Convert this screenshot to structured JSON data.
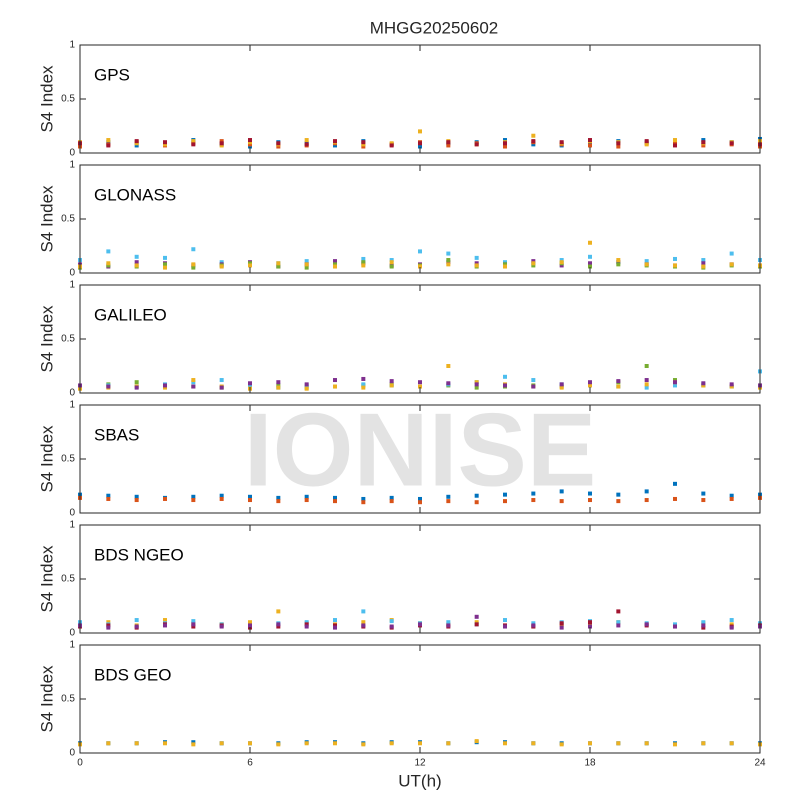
{
  "title": "MHGG20250602",
  "watermark": "IONISE",
  "chart_data": [
    {
      "type": "scatter",
      "label": "GPS",
      "y_label": "S4 Index",
      "xlim": [
        0,
        24
      ],
      "ylim": [
        0,
        1
      ],
      "yticks": [
        0,
        0.5,
        1
      ],
      "x": [
        0,
        1,
        2,
        3,
        4,
        5,
        6,
        7,
        8,
        9,
        10,
        11,
        12,
        13,
        14,
        15,
        16,
        17,
        18,
        19,
        20,
        21,
        22,
        23,
        24
      ],
      "series": [
        {
          "color": "#0072BD",
          "values": [
            0.08,
            0.1,
            0.07,
            0.09,
            0.12,
            0.08,
            0.06,
            0.1,
            0.09,
            0.07,
            0.11,
            0.08,
            0.06,
            0.09,
            0.1,
            0.12,
            0.08,
            0.07,
            0.09,
            0.11,
            0.1,
            0.08,
            0.12,
            0.1,
            0.13
          ]
        },
        {
          "color": "#D95319",
          "values": [
            0.06,
            0.08,
            0.1,
            0.07,
            0.09,
            0.11,
            0.08,
            0.06,
            0.07,
            0.09,
            0.06,
            0.08,
            0.1,
            0.07,
            0.09,
            0.06,
            0.1,
            0.08,
            0.07,
            0.06,
            0.09,
            0.1,
            0.07,
            0.08,
            0.06
          ]
        },
        {
          "color": "#EDB120",
          "values": [
            0.1,
            0.12,
            0.09,
            0.08,
            0.11,
            0.07,
            0.1,
            0.08,
            0.12,
            0.1,
            0.08,
            0.09,
            0.2,
            0.11,
            0.08,
            0.1,
            0.16,
            0.09,
            0.11,
            0.1,
            0.08,
            0.12,
            0.09,
            0.1,
            0.11
          ]
        },
        {
          "color": "#A2142F",
          "values": [
            0.09,
            0.07,
            0.11,
            0.1,
            0.08,
            0.09,
            0.12,
            0.09,
            0.08,
            0.11,
            0.1,
            0.07,
            0.09,
            0.1,
            0.08,
            0.09,
            0.11,
            0.1,
            0.12,
            0.09,
            0.11,
            0.07,
            0.1,
            0.09,
            0.08
          ]
        }
      ]
    },
    {
      "type": "scatter",
      "label": "GLONASS",
      "y_label": "S4 Index",
      "xlim": [
        0,
        24
      ],
      "ylim": [
        0,
        1
      ],
      "yticks": [
        0,
        0.5,
        1
      ],
      "x": [
        0,
        1,
        2,
        3,
        4,
        5,
        6,
        7,
        8,
        9,
        10,
        11,
        12,
        13,
        14,
        15,
        16,
        17,
        18,
        19,
        20,
        21,
        22,
        23,
        24
      ],
      "series": [
        {
          "color": "#4DBEEE",
          "values": [
            0.12,
            0.2,
            0.15,
            0.14,
            0.22,
            0.1,
            0.08,
            0.09,
            0.11,
            0.1,
            0.13,
            0.12,
            0.2,
            0.18,
            0.14,
            0.1,
            0.09,
            0.12,
            0.15,
            0.1,
            0.11,
            0.13,
            0.12,
            0.18,
            0.12
          ]
        },
        {
          "color": "#7E2F8E",
          "values": [
            0.08,
            0.06,
            0.1,
            0.09,
            0.07,
            0.08,
            0.1,
            0.06,
            0.08,
            0.11,
            0.09,
            0.07,
            0.08,
            0.1,
            0.09,
            0.08,
            0.11,
            0.07,
            0.09,
            0.1,
            0.08,
            0.07,
            0.09,
            0.08,
            0.07
          ]
        },
        {
          "color": "#77AC30",
          "values": [
            0.05,
            0.07,
            0.06,
            0.08,
            0.05,
            0.07,
            0.09,
            0.06,
            0.05,
            0.08,
            0.1,
            0.06,
            0.07,
            0.12,
            0.06,
            0.08,
            0.07,
            0.09,
            0.06,
            0.08,
            0.07,
            0.06,
            0.05,
            0.07,
            0.06
          ]
        },
        {
          "color": "#EDB120",
          "values": [
            0.06,
            0.09,
            0.07,
            0.05,
            0.08,
            0.06,
            0.07,
            0.09,
            0.08,
            0.06,
            0.07,
            0.1,
            0.06,
            0.08,
            0.07,
            0.06,
            0.09,
            0.1,
            0.28,
            0.12,
            0.08,
            0.07,
            0.06,
            0.08,
            0.07
          ]
        }
      ]
    },
    {
      "type": "scatter",
      "label": "GALILEO",
      "y_label": "S4 Index",
      "xlim": [
        0,
        24
      ],
      "ylim": [
        0,
        1
      ],
      "yticks": [
        0,
        0.5,
        1
      ],
      "x": [
        0,
        1,
        2,
        3,
        4,
        5,
        6,
        7,
        8,
        9,
        10,
        11,
        12,
        13,
        14,
        15,
        16,
        17,
        18,
        19,
        20,
        21,
        22,
        23,
        24
      ],
      "series": [
        {
          "color": "#77AC30",
          "values": [
            0.06,
            0.08,
            0.1,
            0.07,
            0.06,
            0.05,
            0.06,
            0.07,
            0.05,
            0.06,
            0.07,
            0.08,
            0.06,
            0.07,
            0.05,
            0.06,
            0.07,
            0.06,
            0.08,
            0.1,
            0.25,
            0.12,
            0.07,
            0.06,
            0.07
          ]
        },
        {
          "color": "#4DBEEE",
          "values": [
            0.05,
            0.07,
            0.06,
            0.08,
            0.1,
            0.12,
            0.06,
            0.05,
            0.07,
            0.06,
            0.08,
            0.07,
            0.06,
            0.08,
            0.1,
            0.15,
            0.12,
            0.08,
            0.07,
            0.06,
            0.05,
            0.07,
            0.08,
            0.06,
            0.2
          ]
        },
        {
          "color": "#EDB120",
          "values": [
            0.04,
            0.05,
            0.06,
            0.05,
            0.12,
            0.06,
            0.04,
            0.05,
            0.04,
            0.06,
            0.05,
            0.07,
            0.06,
            0.25,
            0.1,
            0.08,
            0.06,
            0.05,
            0.07,
            0.06,
            0.08,
            0.1,
            0.07,
            0.06,
            0.05
          ]
        },
        {
          "color": "#7E2F8E",
          "values": [
            0.07,
            0.06,
            0.05,
            0.07,
            0.06,
            0.05,
            0.09,
            0.1,
            0.08,
            0.12,
            0.13,
            0.11,
            0.1,
            0.09,
            0.08,
            0.07,
            0.06,
            0.08,
            0.1,
            0.11,
            0.12,
            0.1,
            0.09,
            0.08,
            0.07
          ]
        }
      ]
    },
    {
      "type": "scatter",
      "label": "SBAS",
      "y_label": "S4 Index",
      "xlim": [
        0,
        24
      ],
      "ylim": [
        0,
        1
      ],
      "yticks": [
        0,
        0.5,
        1
      ],
      "x": [
        0,
        1,
        2,
        3,
        4,
        5,
        6,
        7,
        8,
        9,
        10,
        11,
        12,
        13,
        14,
        15,
        16,
        17,
        18,
        19,
        20,
        21,
        22,
        23,
        24
      ],
      "series": [
        {
          "color": "#0072BD",
          "values": [
            0.17,
            0.16,
            0.15,
            0.14,
            0.15,
            0.16,
            0.15,
            0.14,
            0.15,
            0.14,
            0.13,
            0.14,
            0.13,
            0.15,
            0.16,
            0.17,
            0.18,
            0.2,
            0.18,
            0.17,
            0.2,
            0.27,
            0.18,
            0.16,
            0.17
          ]
        },
        {
          "color": "#D95319",
          "values": [
            0.14,
            0.13,
            0.12,
            0.13,
            0.12,
            0.13,
            0.12,
            0.11,
            0.12,
            0.11,
            0.1,
            0.11,
            0.1,
            0.11,
            0.1,
            0.11,
            0.12,
            0.11,
            0.12,
            0.11,
            0.12,
            0.13,
            0.12,
            0.13,
            0.14
          ]
        }
      ]
    },
    {
      "type": "scatter",
      "label": "BDS NGEO",
      "y_label": "S4 Index",
      "xlim": [
        0,
        24
      ],
      "ylim": [
        0,
        1
      ],
      "yticks": [
        0,
        0.5,
        1
      ],
      "x": [
        0,
        1,
        2,
        3,
        4,
        5,
        6,
        7,
        8,
        9,
        10,
        11,
        12,
        13,
        14,
        15,
        16,
        17,
        18,
        19,
        20,
        21,
        22,
        23,
        24
      ],
      "series": [
        {
          "color": "#EDB120",
          "values": [
            0.08,
            0.1,
            0.07,
            0.12,
            0.09,
            0.08,
            0.1,
            0.2,
            0.09,
            0.08,
            0.1,
            0.12,
            0.09,
            0.08,
            0.1,
            0.07,
            0.06,
            0.08,
            0.09,
            0.1,
            0.08,
            0.07,
            0.09,
            0.08,
            0.07
          ]
        },
        {
          "color": "#4DBEEE",
          "values": [
            0.1,
            0.08,
            0.12,
            0.09,
            0.11,
            0.08,
            0.06,
            0.09,
            0.1,
            0.12,
            0.2,
            0.11,
            0.09,
            0.1,
            0.08,
            0.12,
            0.09,
            0.1,
            0.11,
            0.1,
            0.09,
            0.08,
            0.1,
            0.12,
            0.09
          ]
        },
        {
          "color": "#A2142F",
          "values": [
            0.06,
            0.07,
            0.05,
            0.08,
            0.06,
            0.07,
            0.05,
            0.06,
            0.08,
            0.07,
            0.06,
            0.05,
            0.07,
            0.06,
            0.08,
            0.07,
            0.06,
            0.09,
            0.1,
            0.2,
            0.07,
            0.06,
            0.05,
            0.06,
            0.07
          ]
        },
        {
          "color": "#7E2F8E",
          "values": [
            0.07,
            0.05,
            0.06,
            0.07,
            0.08,
            0.06,
            0.07,
            0.08,
            0.06,
            0.05,
            0.07,
            0.06,
            0.08,
            0.07,
            0.15,
            0.06,
            0.07,
            0.05,
            0.06,
            0.07,
            0.08,
            0.06,
            0.07,
            0.05,
            0.06
          ]
        }
      ]
    },
    {
      "type": "scatter",
      "label": "BDS GEO",
      "y_label": "S4 Index",
      "x_label": "UT(h)",
      "xlim": [
        0,
        24
      ],
      "ylim": [
        0,
        1
      ],
      "yticks": [
        0,
        0.5,
        1
      ],
      "xticks": [
        0,
        6,
        12,
        18,
        24
      ],
      "x": [
        0,
        1,
        2,
        3,
        4,
        5,
        6,
        7,
        8,
        9,
        10,
        11,
        12,
        13,
        14,
        15,
        16,
        17,
        18,
        19,
        20,
        21,
        22,
        23,
        24
      ],
      "series": [
        {
          "color": "#0072BD",
          "values": [
            0.09,
            0.09,
            0.09,
            0.1,
            0.1,
            0.09,
            0.09,
            0.09,
            0.1,
            0.1,
            0.09,
            0.1,
            0.1,
            0.09,
            0.1,
            0.1,
            0.09,
            0.09,
            0.09,
            0.09,
            0.09,
            0.09,
            0.09,
            0.09,
            0.09
          ]
        },
        {
          "color": "#EDB120",
          "values": [
            0.08,
            0.09,
            0.09,
            0.09,
            0.08,
            0.09,
            0.09,
            0.08,
            0.09,
            0.09,
            0.08,
            0.09,
            0.09,
            0.09,
            0.11,
            0.09,
            0.09,
            0.08,
            0.09,
            0.09,
            0.09,
            0.08,
            0.09,
            0.09,
            0.08
          ]
        }
      ]
    }
  ]
}
